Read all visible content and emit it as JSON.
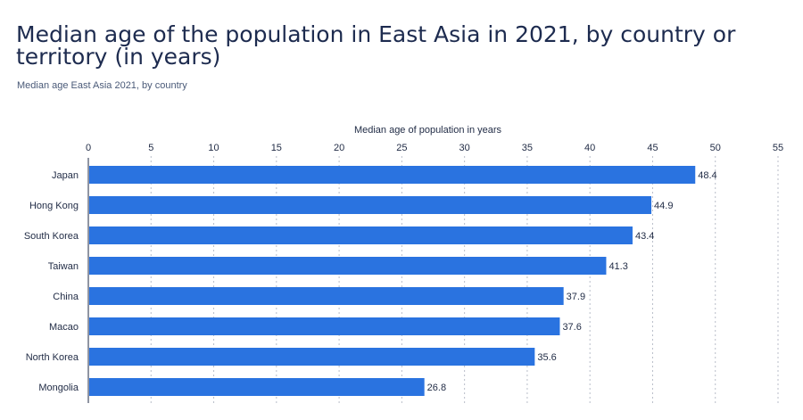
{
  "header": {
    "title": "Median age of the population in East Asia in 2021, by country or territory (in years)",
    "subtitle": "Median age East Asia 2021, by country"
  },
  "colors": {
    "bar": "#2a73e0",
    "grid": "#b8bec9",
    "axis": "#1f2a44",
    "title": "#1d2b4f"
  },
  "chart_data": {
    "type": "bar",
    "orientation": "horizontal",
    "title": "Median age of the population in East Asia in 2021, by country or territory (in years)",
    "subtitle": "Median age East Asia 2021, by country",
    "xlabel": "Median age of population in years",
    "ylabel": "",
    "xlim": [
      0,
      55
    ],
    "xticks": [
      0,
      5,
      10,
      15,
      20,
      25,
      30,
      35,
      40,
      45,
      50,
      55
    ],
    "axis_position": "top",
    "grid": true,
    "categories": [
      "Japan",
      "Hong Kong",
      "South Korea",
      "Taiwan",
      "China",
      "Macao",
      "North Korea",
      "Mongolia"
    ],
    "values": [
      48.4,
      44.9,
      43.4,
      41.3,
      37.9,
      37.6,
      35.6,
      26.8
    ],
    "value_labels": [
      "48.4",
      "44.9",
      "43.4",
      "41.3",
      "37.9",
      "37.6",
      "35.6",
      "26.8"
    ]
  }
}
